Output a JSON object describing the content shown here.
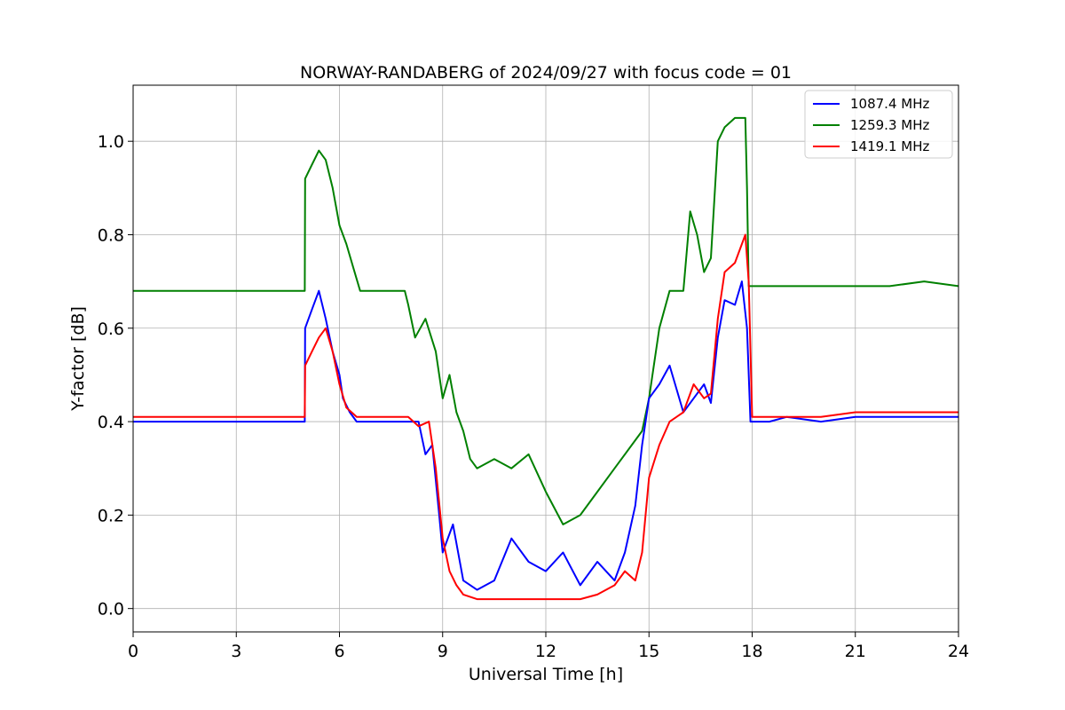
{
  "chart_data": {
    "type": "line",
    "title": "NORWAY-RANDABERG of 2024/09/27 with focus code = 01",
    "xlabel": "Universal Time [h]",
    "ylabel": "Y-factor [dB]",
    "xlim": [
      0,
      24
    ],
    "ylim": [
      -0.05,
      1.12
    ],
    "xticks": [
      0,
      3,
      6,
      9,
      12,
      15,
      18,
      21,
      24
    ],
    "yticks": [
      0.0,
      0.2,
      0.4,
      0.6,
      0.8,
      1.0
    ],
    "grid": true,
    "legend_position": "top-right",
    "series": [
      {
        "name": "1087.4 MHz",
        "color": "#0000ff",
        "x": [
          0,
          0.5,
          1,
          2,
          3,
          4,
          4.99,
          5.0,
          5.2,
          5.4,
          5.6,
          5.8,
          6.0,
          6.1,
          6.3,
          6.5,
          7,
          7.5,
          8,
          8.3,
          8.5,
          8.7,
          8.9,
          9.0,
          9.3,
          9.6,
          10,
          10.5,
          11,
          11.5,
          12,
          12.5,
          13,
          13.5,
          14,
          14.3,
          14.6,
          14.8,
          15,
          15.3,
          15.6,
          16,
          16.3,
          16.6,
          16.8,
          17,
          17.2,
          17.5,
          17.7,
          17.85,
          17.95,
          18.5,
          19,
          20,
          21,
          22,
          23,
          24
        ],
        "y": [
          0.4,
          0.4,
          0.4,
          0.4,
          0.4,
          0.4,
          0.4,
          0.6,
          0.64,
          0.68,
          0.62,
          0.55,
          0.5,
          0.45,
          0.42,
          0.4,
          0.4,
          0.4,
          0.4,
          0.4,
          0.33,
          0.35,
          0.2,
          0.12,
          0.18,
          0.06,
          0.04,
          0.06,
          0.15,
          0.1,
          0.08,
          0.12,
          0.05,
          0.1,
          0.06,
          0.12,
          0.22,
          0.35,
          0.45,
          0.48,
          0.52,
          0.42,
          0.45,
          0.48,
          0.44,
          0.58,
          0.66,
          0.65,
          0.7,
          0.6,
          0.4,
          0.4,
          0.41,
          0.4,
          0.41,
          0.41,
          0.41,
          0.41
        ]
      },
      {
        "name": "1259.3 MHz",
        "color": "#008000",
        "x": [
          0,
          1,
          2,
          3,
          4,
          4.99,
          5.0,
          5.2,
          5.4,
          5.6,
          5.8,
          6.0,
          6.2,
          6.4,
          6.6,
          7,
          7.5,
          7.9,
          8.0,
          8.2,
          8.5,
          8.8,
          9.0,
          9.2,
          9.4,
          9.6,
          9.8,
          10,
          10.5,
          11,
          11.5,
          12,
          12.5,
          13,
          13.5,
          14,
          14.5,
          14.8,
          15,
          15.3,
          15.6,
          16,
          16.2,
          16.4,
          16.6,
          16.8,
          17,
          17.2,
          17.5,
          17.8,
          17.85,
          17.9,
          18.5,
          19,
          20,
          21,
          22,
          23,
          24
        ],
        "y": [
          0.68,
          0.68,
          0.68,
          0.68,
          0.68,
          0.68,
          0.92,
          0.95,
          0.98,
          0.96,
          0.9,
          0.82,
          0.78,
          0.73,
          0.68,
          0.68,
          0.68,
          0.68,
          0.65,
          0.58,
          0.62,
          0.55,
          0.45,
          0.5,
          0.42,
          0.38,
          0.32,
          0.3,
          0.32,
          0.3,
          0.33,
          0.25,
          0.18,
          0.2,
          0.25,
          0.3,
          0.35,
          0.38,
          0.45,
          0.6,
          0.68,
          0.68,
          0.85,
          0.8,
          0.72,
          0.75,
          1.0,
          1.03,
          1.05,
          1.05,
          0.9,
          0.69,
          0.69,
          0.69,
          0.69,
          0.69,
          0.69,
          0.7,
          0.69
        ]
      },
      {
        "name": "1419.1 MHz",
        "color": "#ff0000",
        "x": [
          0,
          1,
          2,
          3,
          4,
          4.99,
          5.0,
          5.2,
          5.4,
          5.6,
          5.8,
          6.0,
          6.2,
          6.5,
          7,
          7.5,
          8,
          8.3,
          8.6,
          8.8,
          9.0,
          9.2,
          9.4,
          9.6,
          10,
          10.5,
          11,
          11.5,
          12,
          12.5,
          13,
          13.5,
          14,
          14.3,
          14.6,
          14.8,
          15,
          15.3,
          15.6,
          16,
          16.3,
          16.6,
          16.8,
          17,
          17.2,
          17.5,
          17.8,
          17.9,
          18.0,
          18.5,
          19,
          20,
          21,
          22,
          23,
          24
        ],
        "y": [
          0.41,
          0.41,
          0.41,
          0.41,
          0.41,
          0.41,
          0.52,
          0.55,
          0.58,
          0.6,
          0.55,
          0.48,
          0.43,
          0.41,
          0.41,
          0.41,
          0.41,
          0.39,
          0.4,
          0.3,
          0.15,
          0.08,
          0.05,
          0.03,
          0.02,
          0.02,
          0.02,
          0.02,
          0.02,
          0.02,
          0.02,
          0.03,
          0.05,
          0.08,
          0.06,
          0.12,
          0.28,
          0.35,
          0.4,
          0.42,
          0.48,
          0.45,
          0.46,
          0.62,
          0.72,
          0.74,
          0.8,
          0.7,
          0.41,
          0.41,
          0.41,
          0.41,
          0.42,
          0.42,
          0.42,
          0.42
        ]
      }
    ]
  }
}
